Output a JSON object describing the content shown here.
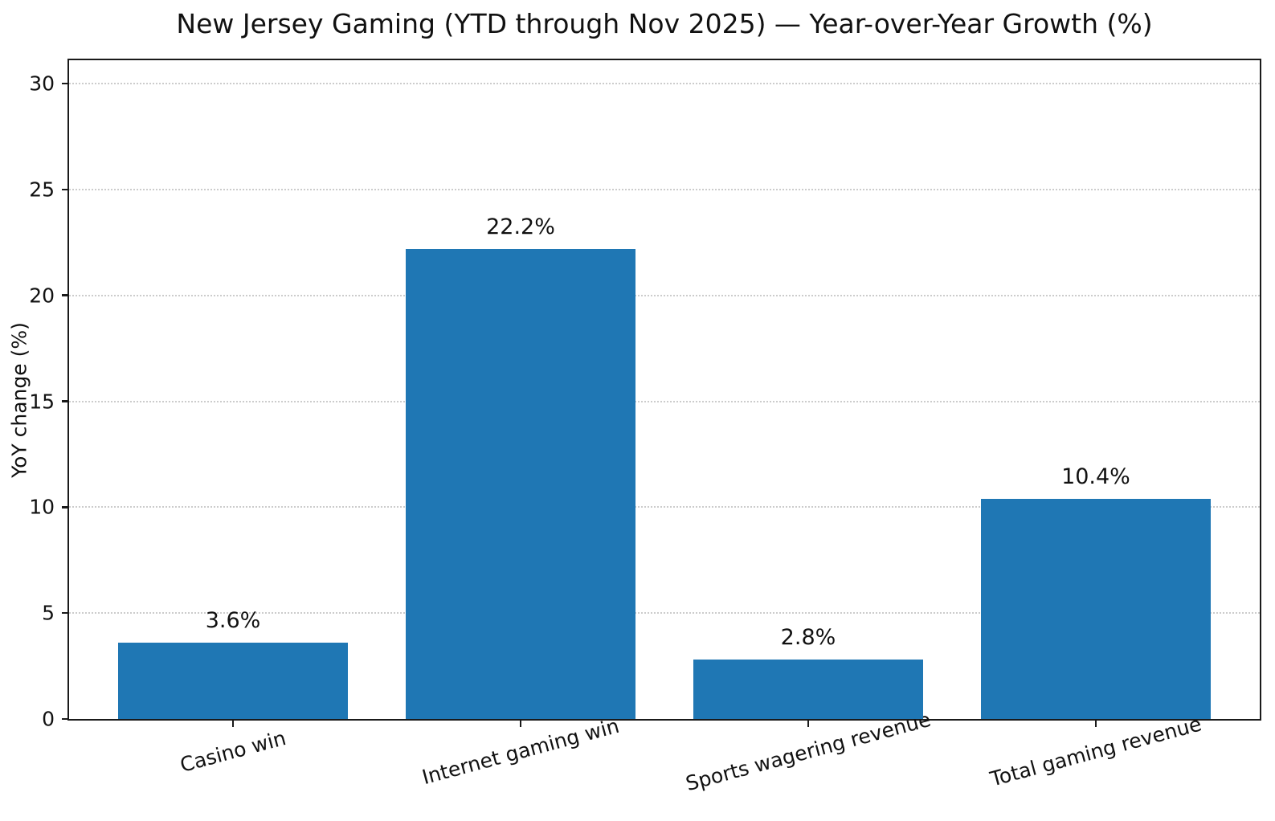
{
  "chart_data": {
    "type": "bar",
    "title": "New Jersey Gaming (YTD through Nov 2025) — Year-over-Year Growth (%)",
    "xlabel": "",
    "ylabel": "YoY change (%)",
    "categories": [
      "Casino win",
      "Internet gaming win",
      "Sports wagering revenue",
      "Total gaming revenue"
    ],
    "values": [
      3.6,
      22.2,
      2.8,
      10.4
    ],
    "value_labels": [
      "3.6%",
      "22.2%",
      "2.8%",
      "10.4%"
    ],
    "yticks": [
      0,
      5,
      10,
      15,
      20,
      25,
      30
    ],
    "ytick_labels": [
      "0",
      "5",
      "10",
      "15",
      "20",
      "25",
      "30"
    ],
    "ylim": [
      0,
      31.1
    ],
    "grid": "horizontal-dotted",
    "legend": "none",
    "xtick_label_rotation_deg": 15,
    "bar_color": "#1f77b4",
    "gridline_color": "#cccccc",
    "spine_color": "#1a1a1a",
    "background_color": "#ffffff",
    "text_color": "#111111"
  }
}
